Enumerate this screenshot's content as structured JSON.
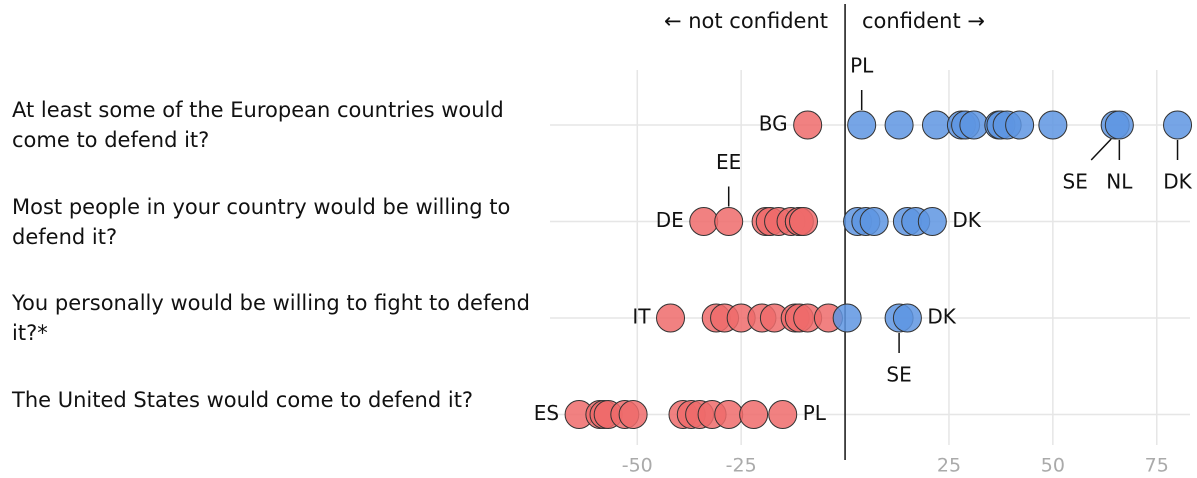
{
  "chart_data": {
    "type": "dot",
    "left_header": "← not confident",
    "right_header": "confident →",
    "categories": [
      "At least some of the European countries would come to defend it?",
      "Most people in your country would be willing to defend it?",
      "You personally would be willing to fight to defend it?*",
      "The United States would come to defend it?"
    ],
    "rows": [
      {
        "values": [
          -9,
          4,
          13,
          22,
          28,
          29,
          31,
          37,
          37.5,
          39,
          42,
          50,
          65,
          66,
          80
        ],
        "point_labels": [
          {
            "text": "BG",
            "index": 0,
            "side": "left"
          },
          {
            "text": "PL",
            "index": 1,
            "side": "above"
          },
          {
            "text": "SE",
            "index": 12,
            "side": "below-left"
          },
          {
            "text": "NL",
            "index": 13,
            "side": "below"
          },
          {
            "text": "DK",
            "index": 14,
            "side": "below"
          }
        ]
      },
      {
        "values": [
          -34,
          -28,
          -19,
          -18,
          -16,
          -13,
          -11,
          -11,
          -10,
          3,
          5,
          7,
          15,
          17,
          21
        ],
        "point_labels": [
          {
            "text": "DE",
            "index": 0,
            "side": "left"
          },
          {
            "text": "EE",
            "index": 1,
            "side": "above"
          },
          {
            "text": "DK",
            "index": 14,
            "side": "right"
          }
        ]
      },
      {
        "values": [
          -42,
          -31,
          -29,
          -25,
          -20,
          -17,
          -12,
          -11,
          -9,
          -4,
          0.5,
          13,
          15
        ],
        "point_labels": [
          {
            "text": "IT",
            "index": 0,
            "side": "left"
          },
          {
            "text": "SE",
            "index": 11,
            "side": "below"
          },
          {
            "text": "DK",
            "index": 12,
            "side": "right"
          }
        ]
      },
      {
        "values": [
          -64,
          -59,
          -58,
          -57,
          -53,
          -51,
          -39,
          -37,
          -35,
          -32,
          -28,
          -22,
          -15
        ],
        "point_labels": [
          {
            "text": "ES",
            "index": 0,
            "side": "left"
          },
          {
            "text": "PL",
            "index": 12,
            "side": "right"
          }
        ]
      }
    ],
    "negative_color": "#ef6b6b",
    "positive_color": "#5e95e2",
    "xlim": [
      -71,
      83
    ],
    "xticks": [
      -50,
      -25,
      25,
      50,
      75
    ],
    "grid": true
  }
}
